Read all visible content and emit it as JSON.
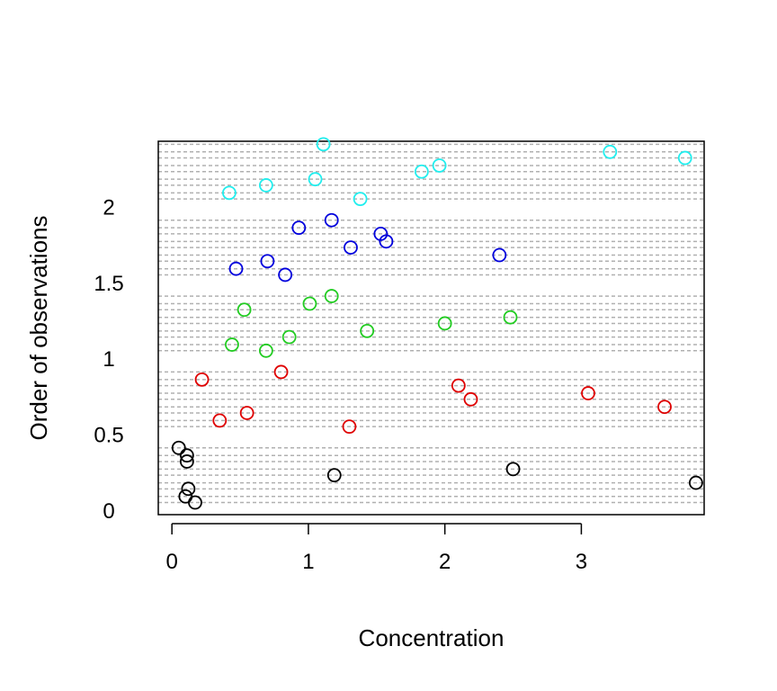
{
  "chart_data": {
    "type": "scatter",
    "xlabel": "Concentration",
    "ylabel": "Order of observations",
    "xlim": [
      -0.1,
      3.9
    ],
    "ylim": [
      2.43,
      -0.03
    ],
    "x_ticks": [
      {
        "value": 0,
        "label": "0"
      },
      {
        "value": 1,
        "label": "1"
      },
      {
        "value": 2,
        "label": "2"
      },
      {
        "value": 3,
        "label": "3"
      }
    ],
    "y_ticks": [
      {
        "value": 0,
        "label": "0"
      },
      {
        "value": 0.5,
        "label": "0.5"
      },
      {
        "value": 1,
        "label": "1"
      },
      {
        "value": 1.5,
        "label": "1.5"
      },
      {
        "value": 2,
        "label": "2"
      }
    ],
    "grid": "horizontal dashed line at each observation",
    "series": [
      {
        "color": "#000000",
        "points": [
          {
            "x": 0.17,
            "y": 0.05
          },
          {
            "x": 0.1,
            "y": 0.09
          },
          {
            "x": 0.12,
            "y": 0.14
          },
          {
            "x": 3.84,
            "y": 0.18
          },
          {
            "x": 1.19,
            "y": 0.23
          },
          {
            "x": 2.5,
            "y": 0.27
          },
          {
            "x": 0.11,
            "y": 0.32
          },
          {
            "x": 0.11,
            "y": 0.36
          },
          {
            "x": 0.05,
            "y": 0.41
          }
        ]
      },
      {
        "color": "#df0000",
        "points": [
          {
            "x": 1.3,
            "y": 0.55
          },
          {
            "x": 0.35,
            "y": 0.59
          },
          {
            "x": 0.55,
            "y": 0.64
          },
          {
            "x": 3.61,
            "y": 0.68
          },
          {
            "x": 2.19,
            "y": 0.73
          },
          {
            "x": 3.05,
            "y": 0.77
          },
          {
            "x": 2.1,
            "y": 0.82
          },
          {
            "x": 0.22,
            "y": 0.86
          },
          {
            "x": 0.8,
            "y": 0.91
          }
        ]
      },
      {
        "color": "#22cc22",
        "points": [
          {
            "x": 0.69,
            "y": 1.05
          },
          {
            "x": 0.44,
            "y": 1.09
          },
          {
            "x": 0.86,
            "y": 1.14
          },
          {
            "x": 1.43,
            "y": 1.18
          },
          {
            "x": 2.0,
            "y": 1.23
          },
          {
            "x": 2.48,
            "y": 1.27
          },
          {
            "x": 0.53,
            "y": 1.32
          },
          {
            "x": 1.01,
            "y": 1.36
          },
          {
            "x": 1.17,
            "y": 1.41
          }
        ]
      },
      {
        "color": "#0000dd",
        "points": [
          {
            "x": 0.83,
            "y": 1.55
          },
          {
            "x": 0.47,
            "y": 1.59
          },
          {
            "x": 0.7,
            "y": 1.64
          },
          {
            "x": 2.4,
            "y": 1.68
          },
          {
            "x": 1.31,
            "y": 1.73
          },
          {
            "x": 1.57,
            "y": 1.77
          },
          {
            "x": 1.53,
            "y": 1.82
          },
          {
            "x": 0.93,
            "y": 1.86
          },
          {
            "x": 1.17,
            "y": 1.91
          }
        ]
      },
      {
        "color": "#22eeee",
        "points": [
          {
            "x": 1.38,
            "y": 2.05
          },
          {
            "x": 0.42,
            "y": 2.09
          },
          {
            "x": 0.69,
            "y": 2.14
          },
          {
            "x": 1.05,
            "y": 2.18
          },
          {
            "x": 1.83,
            "y": 2.23
          },
          {
            "x": 1.96,
            "y": 2.27
          },
          {
            "x": 3.76,
            "y": 2.32
          },
          {
            "x": 3.21,
            "y": 2.36
          },
          {
            "x": 1.11,
            "y": 2.41
          }
        ]
      }
    ]
  }
}
